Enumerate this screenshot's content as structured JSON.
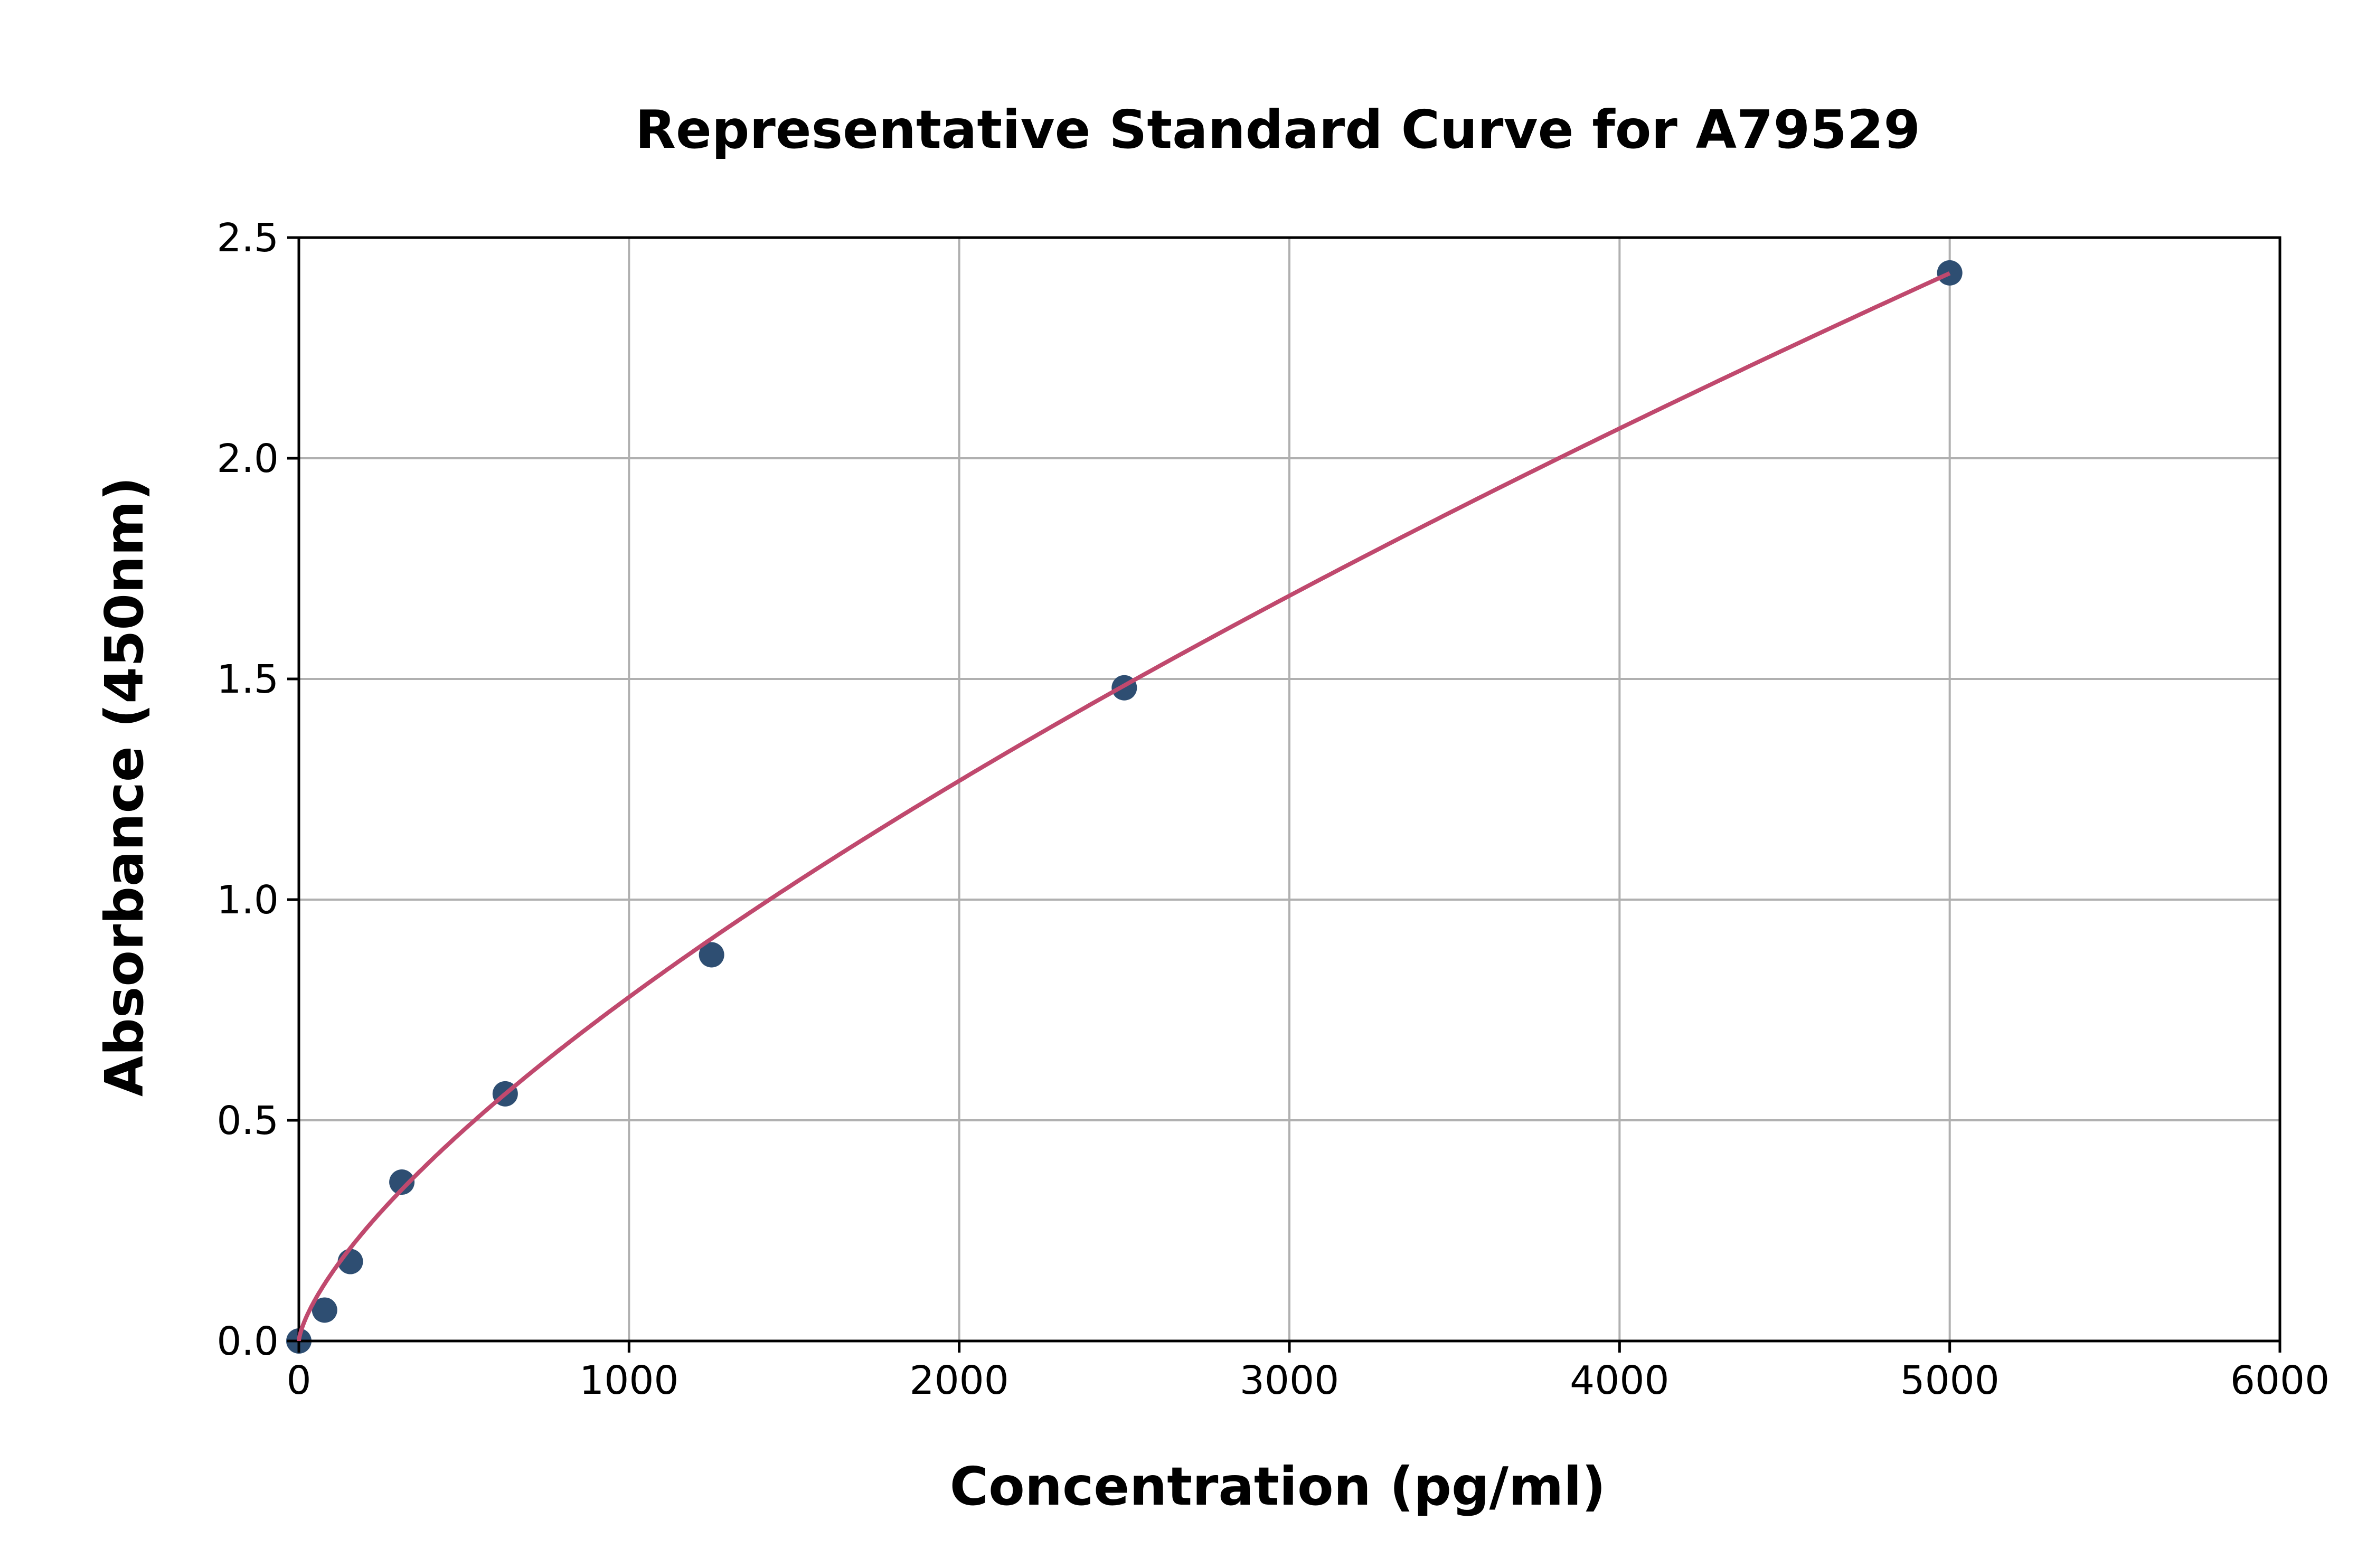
{
  "chart_data": {
    "type": "scatter",
    "title": "Representative Standard Curve for A79529",
    "xlabel": "Concentration (pg/ml)",
    "ylabel": "Absorbance (450nm)",
    "xlim": [
      0,
      6000
    ],
    "ylim": [
      0,
      2.5
    ],
    "xticks": [
      "0",
      "1000",
      "2000",
      "3000",
      "4000",
      "5000",
      "6000"
    ],
    "yticks": [
      "0.0",
      "0.5",
      "1.0",
      "1.5",
      "2.0",
      "2.5"
    ],
    "grid": true,
    "points": {
      "x": [
        0,
        78,
        156,
        312,
        625,
        1250,
        2500,
        5000
      ],
      "y": [
        0.0,
        0.07,
        0.18,
        0.36,
        0.56,
        0.875,
        1.48,
        2.42
      ]
    },
    "fit_curve": {
      "model": "power",
      "a": 0.00602,
      "b": 0.704,
      "x_range": [
        0,
        5000
      ]
    },
    "colors": {
      "points": "#2e4e72",
      "curve": "#c0496e",
      "grid": "#b0b0b0"
    }
  }
}
